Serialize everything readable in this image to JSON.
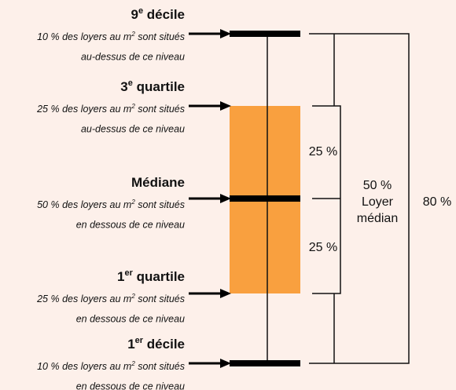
{
  "levels": [
    {
      "heading": "9",
      "heading_sup": "e",
      "heading_rest": " décile",
      "line1": "10 % des loyers au m",
      "line1_sup": "2",
      "line1_rest": " sont situés",
      "line2": "au-dessus de ce niveau"
    },
    {
      "heading": "3",
      "heading_sup": "e",
      "heading_rest": " quartile",
      "line1": "25 % des loyers au m",
      "line1_sup": "2",
      "line1_rest": " sont situés",
      "line2": "au-dessus de ce niveau"
    },
    {
      "heading": "Médiane",
      "line1": "50 % des loyers au m",
      "line1_sup": "2",
      "line1_rest": " sont situés",
      "line2": "en dessous de ce niveau"
    },
    {
      "heading": "1",
      "heading_sup": "er",
      "heading_rest": " quartile",
      "line1": "25 % des loyers au m",
      "line1_sup": "2",
      "line1_rest": " sont situés",
      "line2": "en dessous de ce niveau"
    },
    {
      "heading": "1",
      "heading_sup": "er",
      "heading_rest": " décile",
      "line1": "10 % des loyers au m",
      "line1_sup": "2",
      "line1_rest": " sont situés",
      "line2": "en dessous de ce niveau"
    }
  ],
  "brackets": {
    "upper": "25 %",
    "lower": "25 %",
    "middle": [
      "50 %",
      "Loyer",
      "médian"
    ],
    "outer": "80 %"
  }
}
